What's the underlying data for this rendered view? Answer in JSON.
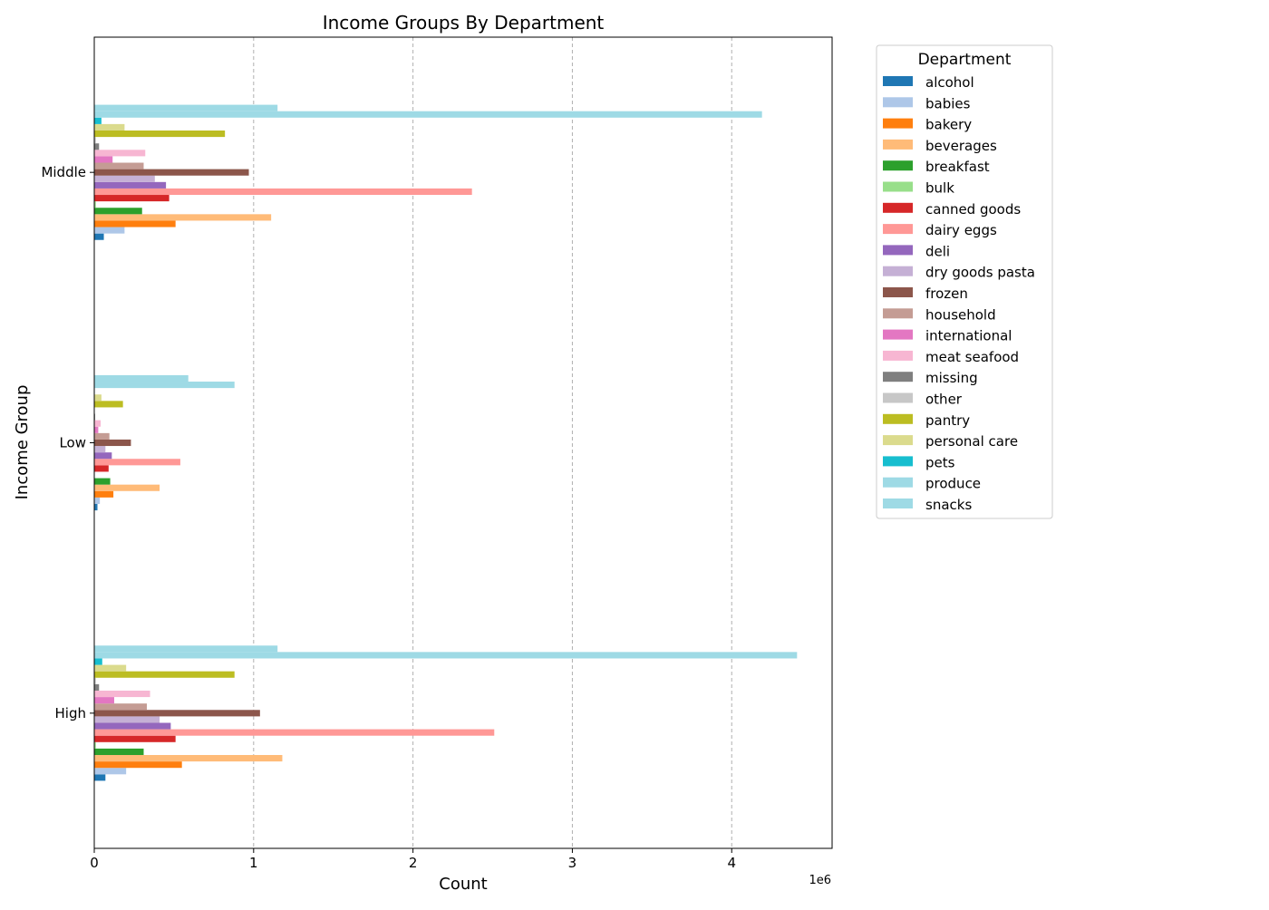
{
  "chart_data": {
    "type": "bar",
    "orientation": "horizontal",
    "title": "Income Groups By Department",
    "xlabel": "Count",
    "ylabel": "Income Group",
    "x_offset_label": "1e6",
    "xlim": [
      0,
      4630000
    ],
    "x_ticks": [
      0,
      1000000,
      2000000,
      3000000,
      4000000
    ],
    "x_tick_labels": [
      "0",
      "1",
      "2",
      "3",
      "4"
    ],
    "grid": "x-dashed",
    "categories": [
      "High",
      "Low",
      "Middle"
    ],
    "legend": {
      "title": "Department",
      "placement": "outside-right-top"
    },
    "series": [
      {
        "name": "alcohol",
        "color": "#1f77b4",
        "values": [
          70000,
          20000,
          60000
        ]
      },
      {
        "name": "babies",
        "color": "#aec7e8",
        "values": [
          200000,
          35000,
          190000
        ]
      },
      {
        "name": "bakery",
        "color": "#ff7f0e",
        "values": [
          550000,
          120000,
          510000
        ]
      },
      {
        "name": "beverages",
        "color": "#ffbb78",
        "values": [
          1180000,
          410000,
          1110000
        ]
      },
      {
        "name": "breakfast",
        "color": "#2ca02c",
        "values": [
          310000,
          100000,
          300000
        ]
      },
      {
        "name": "bulk",
        "color": "#98df8a",
        "values": [
          10000,
          3000,
          10000
        ]
      },
      {
        "name": "canned goods",
        "color": "#d62728",
        "values": [
          510000,
          90000,
          470000
        ]
      },
      {
        "name": "dairy eggs",
        "color": "#ff9896",
        "values": [
          2510000,
          540000,
          2370000
        ]
      },
      {
        "name": "deli",
        "color": "#9467bd",
        "values": [
          480000,
          110000,
          450000
        ]
      },
      {
        "name": "dry goods pasta",
        "color": "#c5b0d5",
        "values": [
          410000,
          70000,
          380000
        ]
      },
      {
        "name": "frozen",
        "color": "#8c564b",
        "values": [
          1040000,
          230000,
          970000
        ]
      },
      {
        "name": "household",
        "color": "#c49c94",
        "values": [
          330000,
          95000,
          310000
        ]
      },
      {
        "name": "international",
        "color": "#e377c2",
        "values": [
          125000,
          25000,
          115000
        ]
      },
      {
        "name": "meat seafood",
        "color": "#f7b6d2",
        "values": [
          350000,
          40000,
          320000
        ]
      },
      {
        "name": "missing",
        "color": "#7f7f7f",
        "values": [
          30000,
          5000,
          30000
        ]
      },
      {
        "name": "other",
        "color": "#c7c7c7",
        "values": [
          10000,
          2000,
          10000
        ]
      },
      {
        "name": "pantry",
        "color": "#bcbd22",
        "values": [
          880000,
          180000,
          820000
        ]
      },
      {
        "name": "personal care",
        "color": "#dbdb8d",
        "values": [
          200000,
          45000,
          190000
        ]
      },
      {
        "name": "pets",
        "color": "#17becf",
        "values": [
          50000,
          3000,
          45000
        ]
      },
      {
        "name": "produce",
        "color": "#9edae5",
        "values": [
          4410000,
          880000,
          4190000
        ]
      },
      {
        "name": "snacks",
        "color": "#9edae5",
        "values": [
          1150000,
          590000,
          1150000
        ]
      }
    ]
  }
}
